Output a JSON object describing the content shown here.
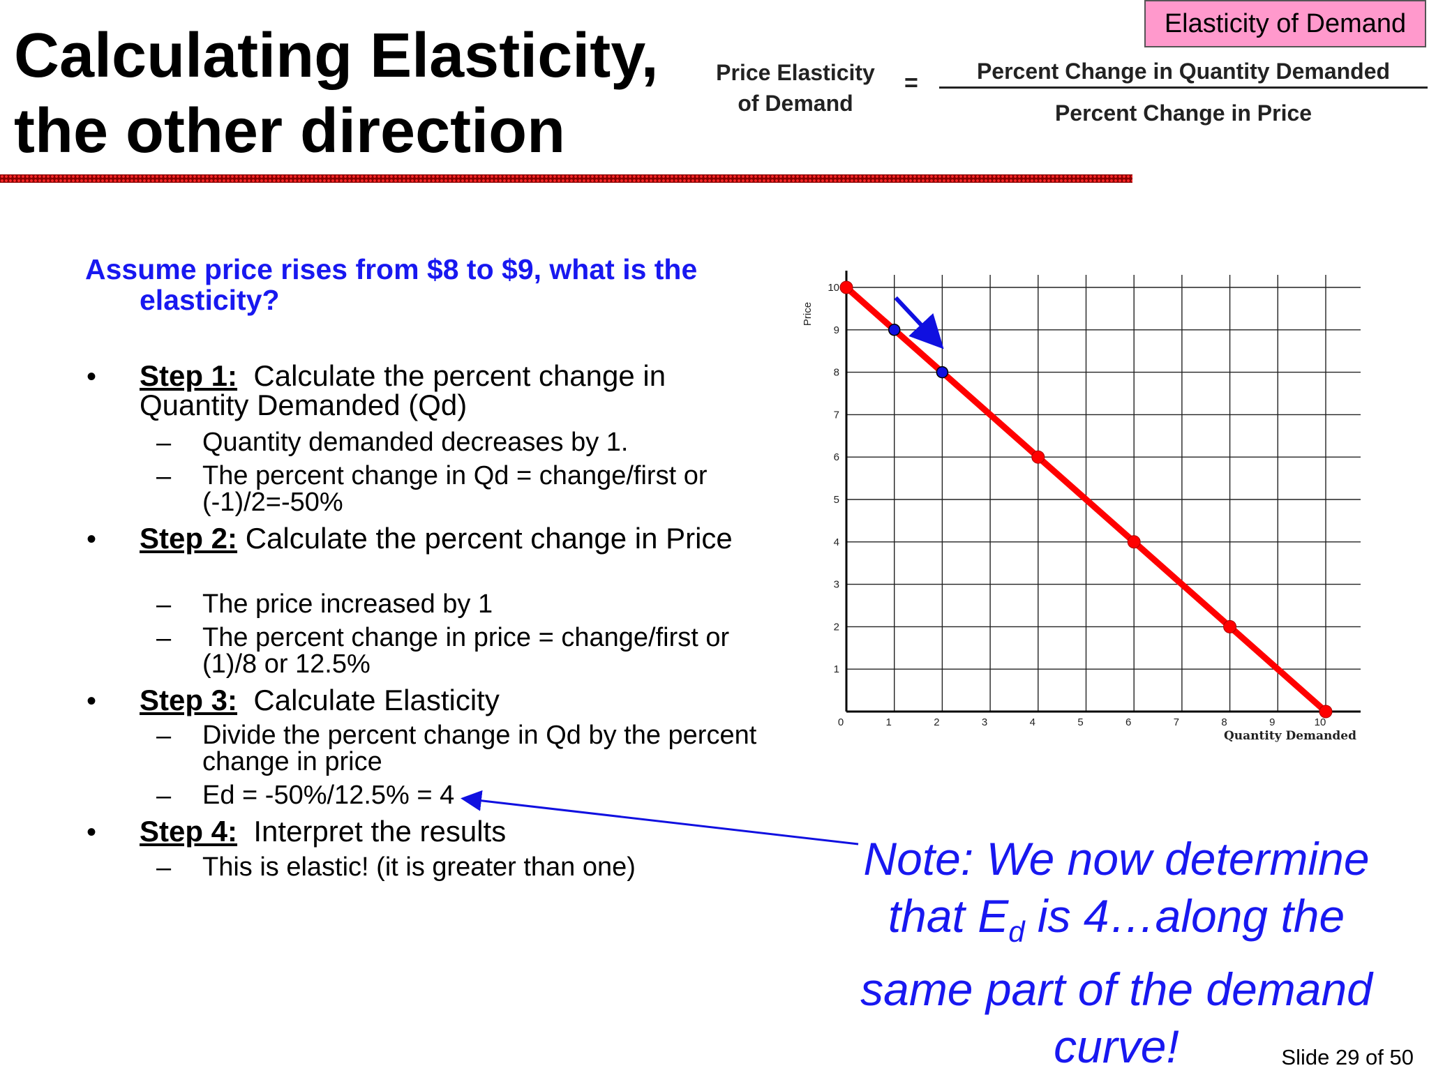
{
  "title": {
    "line1": "Calculating Elasticity,",
    "line2": "the other direction"
  },
  "tag": "Elasticity of Demand",
  "formula": {
    "lhs_line1": "Price Elasticity",
    "lhs_line2": "of Demand",
    "eq": "=",
    "numerator": "Percent Change in Quantity Demanded",
    "denominator": "Percent Change in Price"
  },
  "question": "Assume price rises from $8 to $9, what is the elasticity?",
  "steps": [
    {
      "label": "Step 1:",
      "text": "Calculate the percent change in Quantity Demanded (Qd)",
      "subs": [
        "Quantity demanded decreases by 1.",
        "The percent change in Qd = change/first or (-1)/2=-50%"
      ]
    },
    {
      "label": "Step 2:",
      "text": "Calculate the percent change in Price",
      "subs": [
        "The price increased by 1",
        "The percent change in price = change/first or (1)/8 or 12.5%"
      ]
    },
    {
      "label": "Step 3:",
      "text": "Calculate Elasticity",
      "subs": [
        "Divide the percent change in Qd by the percent change in price",
        "Ed = -50%/12.5% = 4"
      ]
    },
    {
      "label": "Step 4:",
      "text": "Interpret the results",
      "subs": [
        "This is elastic! (it is greater than one)"
      ]
    }
  ],
  "bullet": "•",
  "dash": "–",
  "chart_data": {
    "type": "line",
    "xlabel": "Quantity Demanded",
    "ylabel": "Price",
    "xlim": [
      0,
      10
    ],
    "ylim": [
      0,
      10
    ],
    "x_ticks": [
      "0",
      "1",
      "2",
      "3",
      "4",
      "5",
      "6",
      "7",
      "8",
      "9",
      "10"
    ],
    "y_ticks": [
      "1",
      "2",
      "3",
      "4",
      "5",
      "6",
      "7",
      "8",
      "9",
      "10"
    ],
    "grid": true,
    "series": [
      {
        "color": "#ff0000",
        "points": [
          [
            0,
            10
          ],
          [
            4,
            6
          ],
          [
            6,
            4
          ],
          [
            8,
            2
          ],
          [
            10,
            0
          ]
        ]
      }
    ],
    "highlighted_points": [
      [
        1,
        9
      ],
      [
        2,
        8
      ]
    ],
    "highlight_color": "#1010e0",
    "movement_arrow": {
      "from": [
        1,
        9
      ],
      "to": [
        2,
        8
      ]
    }
  },
  "note": {
    "line1": "Note: We now determine",
    "line2_pre": "that E",
    "line2_sub": "d",
    "line2_post": " is 4…along the",
    "line3": "same part of the demand",
    "line4": "curve!"
  },
  "slide_number": "Slide 29 of 50"
}
